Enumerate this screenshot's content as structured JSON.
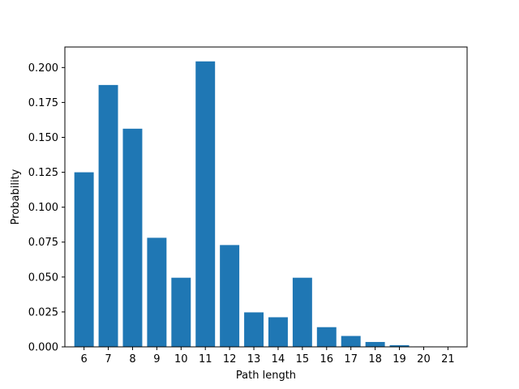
{
  "chart_data": {
    "type": "bar",
    "title": "",
    "xlabel": "Path length",
    "ylabel": "Probability",
    "categories": [
      "6",
      "7",
      "8",
      "9",
      "10",
      "11",
      "12",
      "13",
      "14",
      "15",
      "16",
      "17",
      "18",
      "19",
      "20",
      "21"
    ],
    "values": [
      0.125,
      0.1875,
      0.1562,
      0.0781,
      0.0495,
      0.2044,
      0.0729,
      0.0247,
      0.0212,
      0.0495,
      0.0141,
      0.0078,
      0.0035,
      0.0012,
      0.0003,
      0.0001
    ],
    "ylim": [
      0,
      0.2147
    ],
    "yticks": [
      "0.000",
      "0.025",
      "0.050",
      "0.075",
      "0.100",
      "0.125",
      "0.150",
      "0.175",
      "0.200"
    ],
    "grid": false,
    "bar_color": "#1f77b4"
  }
}
